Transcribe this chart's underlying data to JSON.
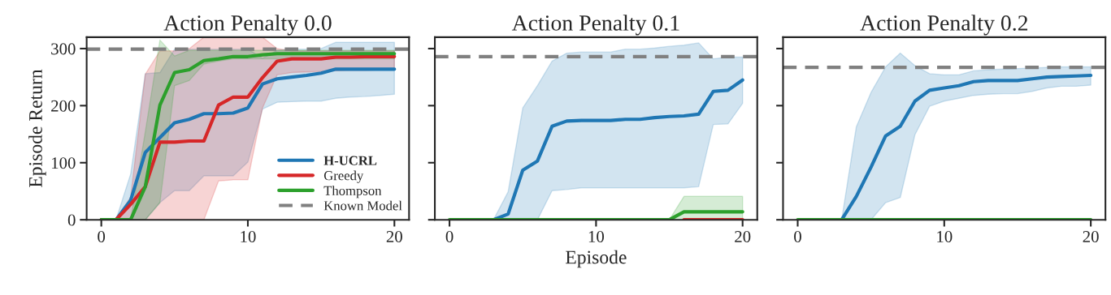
{
  "chart_data": [
    {
      "type": "line",
      "title": "Action Penalty 0.0",
      "ylabel": "Episode Return",
      "x": [
        0,
        1,
        2,
        3,
        4,
        5,
        6,
        7,
        8,
        9,
        10,
        11,
        12,
        13,
        14,
        15,
        16,
        17,
        18,
        19,
        20
      ],
      "xlim": [
        -1,
        21
      ],
      "xticks": [
        0,
        10,
        20
      ],
      "ylim": [
        0,
        320
      ],
      "yticks": [
        0,
        100,
        200,
        300
      ],
      "legend": "bottom right",
      "grid": false,
      "series": [
        {
          "name": "H-UCRL",
          "color": "#1f77b4",
          "values": [
            0,
            0,
            34,
            118,
            144,
            170,
            176,
            186,
            186,
            187,
            196,
            238,
            247,
            250,
            253,
            257,
            264,
            264,
            264,
            264,
            264
          ],
          "lower": [
            0,
            0,
            0,
            0,
            30,
            51,
            51,
            77,
            77,
            77,
            101,
            194,
            206,
            207,
            208,
            208,
            213,
            215,
            216,
            218,
            220
          ],
          "upper": [
            0,
            0,
            80,
            256,
            258,
            299,
            299,
            299,
            299,
            299,
            299,
            283,
            297,
            299,
            299,
            300,
            311,
            311,
            311,
            311,
            311
          ]
        },
        {
          "name": "Greedy",
          "color": "#d62728",
          "values": [
            0,
            0,
            27,
            58,
            136,
            136,
            138,
            138,
            201,
            215,
            215,
            249,
            278,
            282,
            282,
            282,
            285,
            285,
            286,
            286,
            286
          ],
          "lower": [
            0,
            0,
            0,
            0,
            0,
            0,
            0,
            0,
            68,
            70,
            70,
            196,
            254,
            258,
            259,
            260,
            261,
            262,
            262,
            263,
            263
          ],
          "upper": [
            0,
            0,
            40,
            255,
            296,
            296,
            300,
            320,
            320,
            320,
            320,
            320,
            300,
            296,
            296,
            296,
            296,
            296,
            296,
            296,
            296
          ]
        },
        {
          "name": "Thompson",
          "color": "#2ca02c",
          "values": [
            0,
            0,
            0,
            58,
            201,
            258,
            263,
            279,
            282,
            286,
            286,
            289,
            291,
            291,
            291,
            291,
            291,
            291,
            291,
            291,
            291
          ],
          "lower": [
            0,
            0,
            0,
            0,
            30,
            235,
            244,
            273,
            278,
            282,
            282,
            282,
            282,
            282,
            282,
            282,
            282,
            282,
            282,
            282,
            282
          ],
          "upper": [
            0,
            0,
            0,
            154,
            315,
            287,
            297,
            297,
            297,
            297,
            297,
            297,
            297,
            297,
            297,
            297,
            297,
            297,
            297,
            297,
            297
          ]
        }
      ],
      "ref_lines": [
        {
          "axis": "y",
          "value": 299,
          "label": "Known Model",
          "color": "#808080",
          "line_style": "dashed"
        }
      ]
    },
    {
      "type": "line",
      "title": "Action Penalty 0.1",
      "xlabel": "Episode",
      "x": [
        0,
        1,
        2,
        3,
        4,
        5,
        6,
        7,
        8,
        9,
        10,
        11,
        12,
        13,
        14,
        15,
        16,
        17,
        18,
        19,
        20
      ],
      "xlim": [
        -1,
        21
      ],
      "xticks": [
        0,
        10,
        20
      ],
      "ylim": [
        0,
        320
      ],
      "yticks": [
        {
          "value": 0,
          "label": null
        },
        {
          "value": 100,
          "label": null
        },
        {
          "value": 200,
          "label": null
        },
        {
          "value": 300,
          "label": null
        }
      ],
      "tick_labels": "x",
      "grid": false,
      "series": [
        {
          "color": "#1f77b4",
          "values": [
            null,
            null,
            null,
            0,
            10,
            87,
            103,
            164,
            173,
            174,
            174,
            174,
            176,
            176,
            179,
            181,
            182,
            185,
            225,
            227,
            245
          ],
          "lower": [
            0,
            0,
            0,
            0,
            0,
            0,
            0,
            51,
            53,
            56,
            56,
            56,
            56,
            56,
            56,
            56,
            56,
            58,
            167,
            168,
            204
          ],
          "upper": [
            0,
            0,
            0,
            0,
            49,
            196,
            235,
            278,
            292,
            294,
            294,
            294,
            299,
            299,
            301,
            304,
            306,
            310,
            282,
            285,
            285
          ]
        },
        {
          "color": "#2ca02c",
          "values": [
            0,
            0,
            0,
            0,
            0,
            0,
            0,
            0,
            0,
            0,
            0,
            0,
            0,
            0,
            0,
            0,
            14,
            14,
            14,
            14,
            14
          ],
          "lower": [
            0,
            0,
            0,
            0,
            0,
            0,
            0,
            0,
            0,
            0,
            0,
            0,
            0,
            0,
            0,
            0,
            0,
            0,
            0,
            0,
            0
          ],
          "upper": [
            0,
            0,
            0,
            0,
            0,
            0,
            0,
            0,
            0,
            0,
            0,
            0,
            0,
            0,
            0,
            0,
            41,
            41,
            41,
            41,
            41
          ]
        },
        {
          "color": "#d62728",
          "values": [
            null,
            null,
            null,
            null,
            null,
            null,
            null,
            null,
            null,
            null,
            null,
            null,
            null,
            null,
            null,
            null,
            0,
            0,
            0,
            0,
            0
          ]
        }
      ],
      "ref_lines": [
        {
          "axis": "y",
          "value": 286,
          "color": "#808080",
          "line_style": "dashed"
        }
      ]
    },
    {
      "type": "line",
      "title": "Action Penalty 0.2",
      "x": [
        0,
        1,
        2,
        3,
        4,
        5,
        6,
        7,
        8,
        9,
        10,
        11,
        12,
        13,
        14,
        15,
        16,
        17,
        18,
        19,
        20
      ],
      "xlim": [
        -1,
        21
      ],
      "xticks": [
        0,
        10,
        20
      ],
      "ylim": [
        0,
        320
      ],
      "yticks": [
        {
          "value": 0,
          "label": null
        },
        {
          "value": 100,
          "label": null
        },
        {
          "value": 200,
          "label": null
        },
        {
          "value": 300,
          "label": null
        }
      ],
      "tick_labels": "x",
      "grid": false,
      "series": [
        {
          "color": "#1f77b4",
          "values": [
            null,
            null,
            null,
            0,
            41,
            92,
            147,
            164,
            208,
            227,
            231,
            235,
            242,
            244,
            244,
            244,
            247,
            250,
            251,
            252,
            253
          ],
          "lower": [
            0,
            0,
            0,
            0,
            0,
            0,
            30,
            39,
            149,
            199,
            208,
            213,
            218,
            220,
            221,
            221,
            225,
            231,
            234,
            234,
            236
          ],
          "upper": [
            0,
            0,
            0,
            0,
            163,
            223,
            268,
            292,
            270,
            256,
            254,
            254,
            261,
            263,
            264,
            265,
            266,
            267,
            268,
            268,
            268
          ]
        },
        {
          "color": "#2ca02c",
          "values": [
            0,
            0,
            0,
            0,
            0,
            0,
            0,
            0,
            0,
            0,
            0,
            0,
            0,
            0,
            0,
            0,
            0,
            0,
            0,
            0,
            0
          ]
        }
      ],
      "ref_lines": [
        {
          "axis": "y",
          "value": 267,
          "color": "#808080",
          "line_style": "dashed"
        }
      ]
    }
  ]
}
